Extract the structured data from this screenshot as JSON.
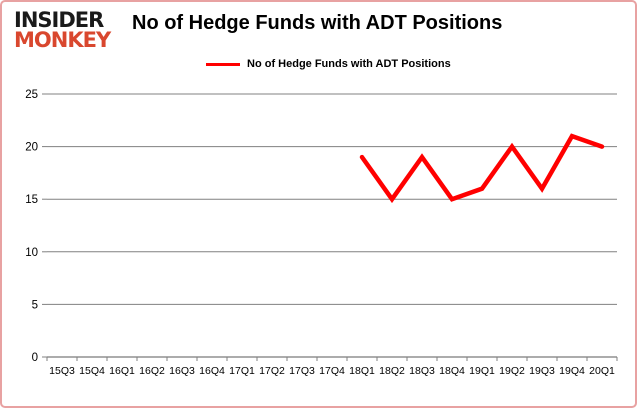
{
  "logo": {
    "line1": "INSIDER",
    "line2": "MONKEY",
    "accent_color": "#d9472e"
  },
  "header": {
    "title": "No of Hedge Funds with ADT Positions"
  },
  "legend": {
    "label": "No of Hedge Funds with ADT Positions",
    "marker_color": "#ff0000"
  },
  "colors": {
    "line": "#ff0000",
    "gridline": "#808080",
    "axis": "#595959",
    "tick": "#808080",
    "label_text": "#000000",
    "frame_border": "#e8a2a2"
  },
  "chart_data": {
    "type": "line",
    "title": "No of Hedge Funds with ADT Positions",
    "xlabel": "",
    "ylabel": "",
    "categories": [
      "15Q3",
      "15Q4",
      "16Q1",
      "16Q2",
      "16Q3",
      "16Q4",
      "17Q1",
      "17Q2",
      "17Q3",
      "17Q4",
      "18Q1",
      "18Q2",
      "18Q3",
      "18Q4",
      "19Q1",
      "19Q2",
      "19Q3",
      "19Q4",
      "20Q1"
    ],
    "series": [
      {
        "name": "No of Hedge Funds with ADT Positions",
        "color": "#ff0000",
        "values": [
          null,
          null,
          null,
          null,
          null,
          null,
          null,
          null,
          null,
          null,
          19,
          15,
          19,
          15,
          16,
          20,
          16,
          21,
          20
        ]
      }
    ],
    "ylim": [
      0,
      25
    ],
    "yticks": [
      0,
      5,
      10,
      15,
      20,
      25
    ],
    "grid": true,
    "legend_position": "top"
  }
}
